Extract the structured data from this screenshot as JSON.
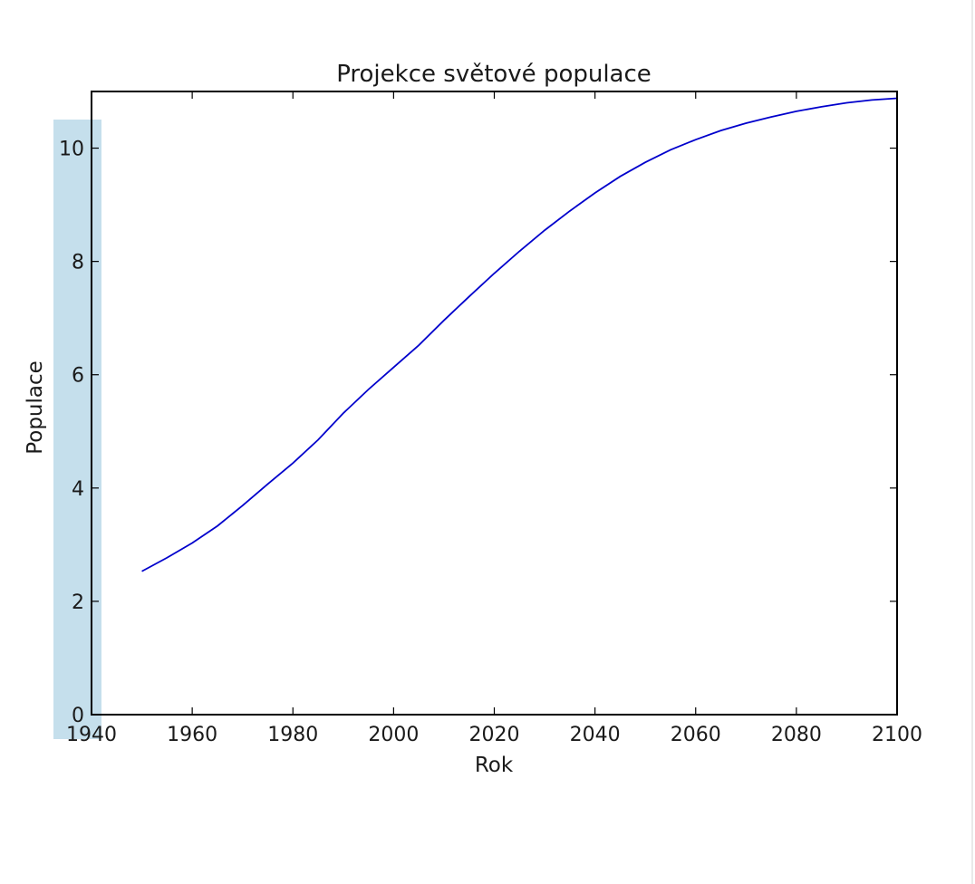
{
  "chart_data": {
    "type": "line",
    "title": "Projekce světové populace",
    "xlabel": "Rok",
    "ylabel": "Populace",
    "xlim": [
      1940,
      2100
    ],
    "ylim": [
      0,
      11
    ],
    "xticks": [
      1940,
      1960,
      1980,
      2000,
      2020,
      2040,
      2060,
      2080,
      2100
    ],
    "yticks": [
      0,
      2,
      4,
      6,
      8,
      10
    ],
    "grid": false,
    "line_color": "#0000cc",
    "highlight_color": "#c5dfec",
    "x": [
      1950,
      1955,
      1960,
      1965,
      1970,
      1975,
      1980,
      1985,
      1990,
      1995,
      2000,
      2005,
      2010,
      2015,
      2020,
      2025,
      2030,
      2035,
      2040,
      2045,
      2050,
      2055,
      2060,
      2065,
      2070,
      2075,
      2080,
      2085,
      2090,
      2095,
      2100
    ],
    "y": [
      2.53,
      2.77,
      3.03,
      3.33,
      3.69,
      4.07,
      4.44,
      4.85,
      5.32,
      5.74,
      6.13,
      6.52,
      6.96,
      7.38,
      7.79,
      8.18,
      8.55,
      8.89,
      9.21,
      9.5,
      9.75,
      9.97,
      10.15,
      10.31,
      10.44,
      10.55,
      10.65,
      10.73,
      10.8,
      10.85,
      10.88
    ]
  }
}
